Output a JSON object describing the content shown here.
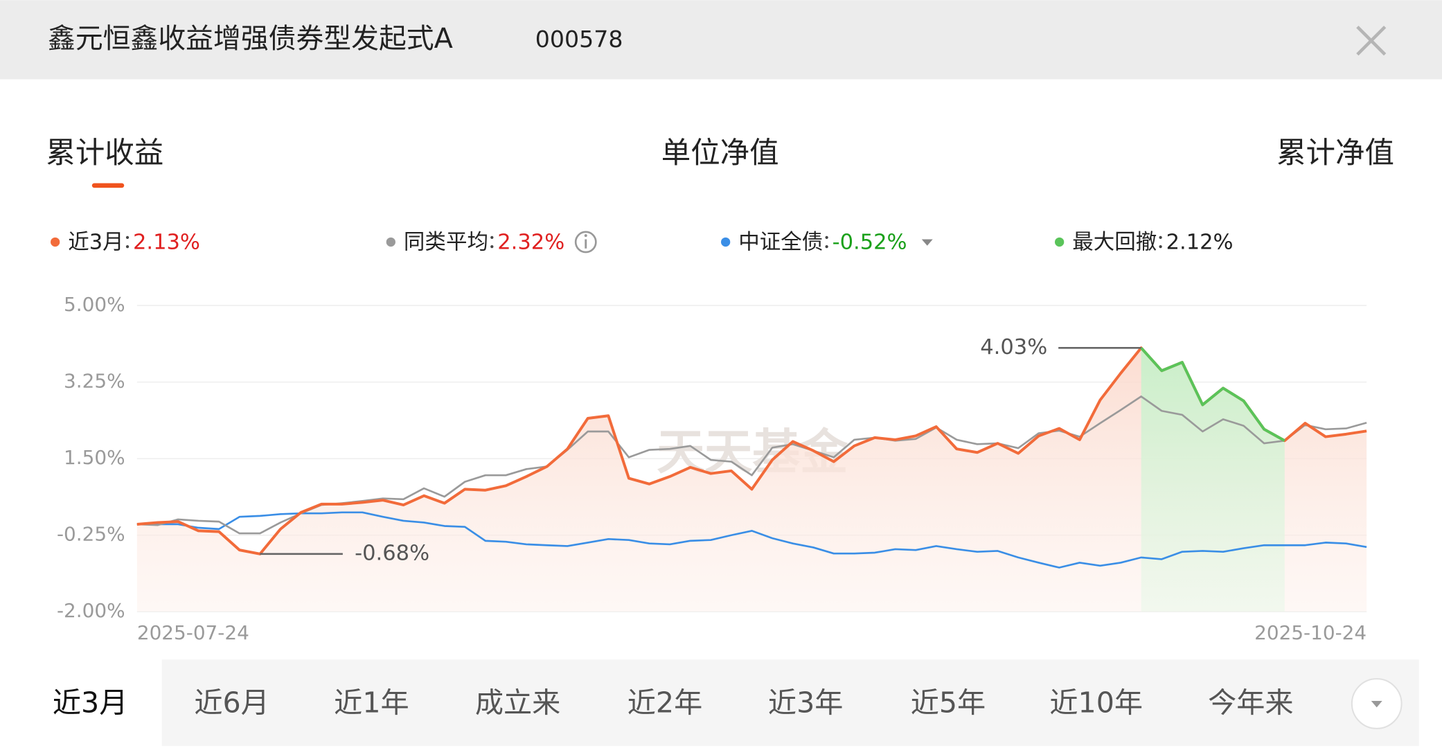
{
  "header": {
    "title": "鑫元恒鑫收益增强债券型发起式A",
    "code": "000578"
  },
  "tabs": [
    "累计收益",
    "单位净值",
    "累计净值"
  ],
  "chart_data": {
    "type": "line",
    "watermark": "天天基金",
    "categories": [
      "2025-07-24",
      null,
      null,
      null,
      null,
      null,
      null,
      null,
      null,
      null,
      null,
      null,
      null,
      null,
      null,
      null,
      null,
      null,
      null,
      null,
      null,
      null,
      null,
      null,
      null,
      null,
      null,
      null,
      null,
      null,
      null,
      null,
      null,
      null,
      null,
      null,
      null,
      null,
      null,
      null,
      null,
      null,
      null,
      null,
      null,
      null,
      null,
      null,
      null,
      null,
      null,
      null,
      null,
      null,
      null,
      null,
      null,
      null,
      null,
      null,
      "2025-10-24"
    ],
    "ylim": [
      -2,
      5
    ],
    "yticks": [
      {
        "value": 5,
        "label": "5.00%"
      },
      {
        "value": 3.25,
        "label": "3.25%"
      },
      {
        "value": 1.5,
        "label": "1.50%"
      },
      {
        "value": -0.25,
        "label": "-0.25%"
      },
      {
        "value": -2,
        "label": "-2.00%"
      }
    ],
    "grid": true,
    "series": [
      {
        "name": "近3月",
        "color": "#f26b3a",
        "return": {
          "value": 2.13,
          "label": "2.13%"
        },
        "values": [
          0,
          0.04,
          0.06,
          -0.15,
          -0.17,
          -0.59,
          -0.68,
          -0.11,
          0.27,
          0.46,
          0.46,
          0.5,
          0.55,
          0.44,
          0.65,
          0.48,
          0.8,
          0.78,
          0.88,
          1.09,
          1.32,
          1.72,
          2.42,
          2.48,
          1.05,
          0.92,
          1.09,
          1.3,
          1.16,
          1.22,
          0.8,
          1.47,
          1.89,
          1.68,
          1.43,
          1.79,
          1.98,
          1.93,
          2.02,
          2.23,
          1.72,
          1.64,
          1.85,
          1.62,
          2.02,
          2.19,
          1.93,
          2.84,
          3.45,
          4.03,
          3.51,
          3.7,
          2.73,
          3.11,
          2.82,
          2.17,
          1.91,
          2.31,
          2,
          2.06,
          2.13
        ]
      },
      {
        "name": "同类平均",
        "color": "#9a9a9a",
        "return": {
          "value": 2.32,
          "label": "2.32%"
        },
        "values": [
          0,
          -0.02,
          0.11,
          0.08,
          0.06,
          -0.21,
          -0.21,
          0.04,
          0.25,
          0.44,
          0.48,
          0.53,
          0.59,
          0.57,
          0.82,
          0.63,
          0.97,
          1.12,
          1.12,
          1.26,
          1.32,
          1.7,
          2.12,
          2.12,
          1.53,
          1.7,
          1.72,
          1.79,
          1.47,
          1.43,
          1.12,
          1.75,
          1.83,
          1.68,
          1.53,
          1.93,
          1.98,
          1.91,
          1.95,
          2.21,
          1.93,
          1.83,
          1.85,
          1.74,
          2.08,
          2.14,
          2,
          2.31,
          2.61,
          2.92,
          2.59,
          2.5,
          2.12,
          2.4,
          2.25,
          1.85,
          1.91,
          2.27,
          2.17,
          2.19,
          2.32
        ]
      },
      {
        "name": "中证全债",
        "color": "#3a8ee6",
        "return": {
          "value": -0.52,
          "label": "-0.52%"
        },
        "values": [
          0,
          0,
          0,
          -0.08,
          -0.11,
          0.17,
          0.19,
          0.23,
          0.25,
          0.25,
          0.27,
          0.27,
          0.17,
          0.08,
          0.04,
          -0.04,
          -0.06,
          -0.38,
          -0.4,
          -0.46,
          -0.48,
          -0.5,
          -0.42,
          -0.34,
          -0.36,
          -0.44,
          -0.46,
          -0.38,
          -0.36,
          -0.25,
          -0.15,
          -0.32,
          -0.44,
          -0.53,
          -0.67,
          -0.67,
          -0.65,
          -0.57,
          -0.59,
          -0.5,
          -0.57,
          -0.63,
          -0.61,
          -0.76,
          -0.88,
          -0.99,
          -0.88,
          -0.95,
          -0.88,
          -0.76,
          -0.8,
          -0.63,
          -0.61,
          -0.63,
          -0.55,
          -0.48,
          -0.48,
          -0.48,
          -0.42,
          -0.44,
          -0.52
        ]
      }
    ],
    "max_drawdown": {
      "name": "最大回撤",
      "color": "#5ac45a",
      "value": 2.12,
      "label": "2.12%"
    },
    "annotations": [
      {
        "value": 4.03,
        "label": "4.03%"
      },
      {
        "value": -0.68,
        "label": "-0.68%"
      }
    ]
  },
  "ranges": [
    "近3月",
    "近6月",
    "近1年",
    "成立来",
    "近2年",
    "近3年",
    "近5年",
    "近10年",
    "今年来"
  ]
}
